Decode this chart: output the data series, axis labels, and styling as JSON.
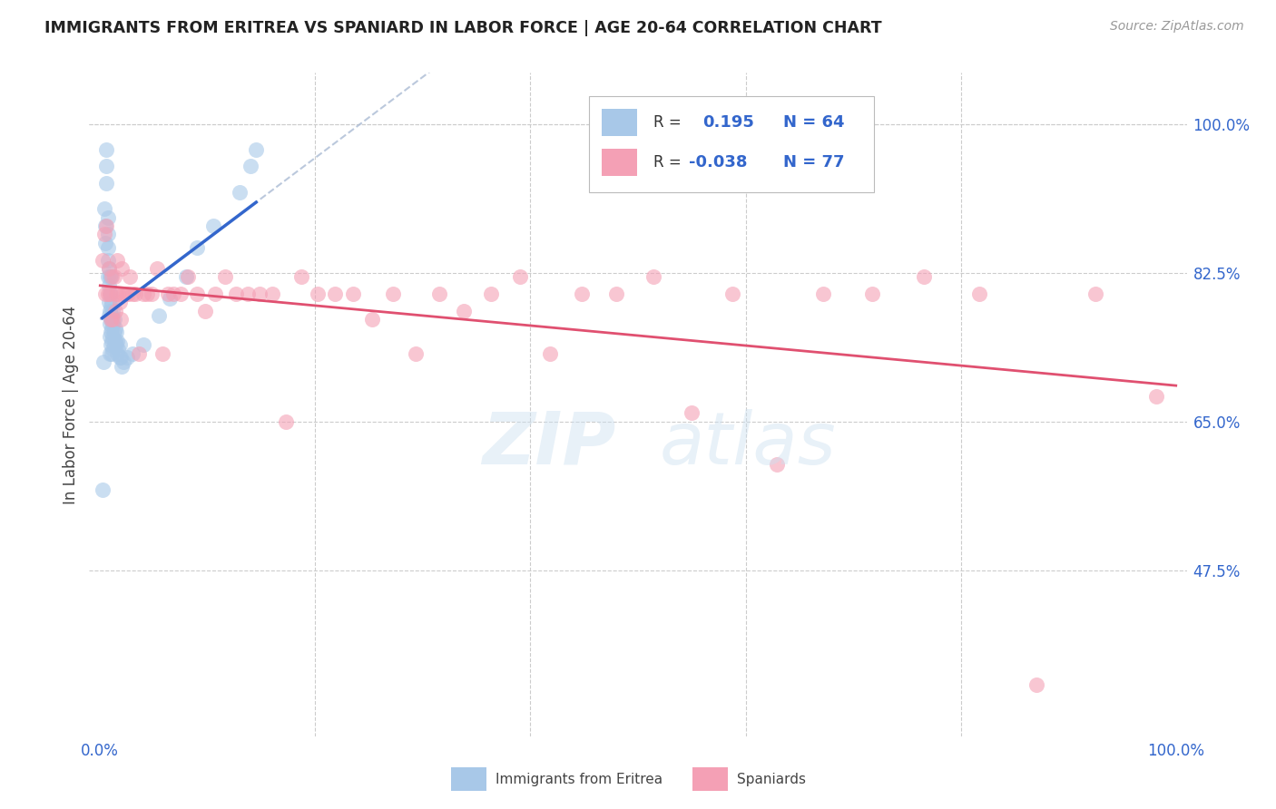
{
  "title": "IMMIGRANTS FROM ERITREA VS SPANIARD IN LABOR FORCE | AGE 20-64 CORRELATION CHART",
  "source": "Source: ZipAtlas.com",
  "ylabel": "In Labor Force | Age 20-64",
  "xlim": [
    -0.01,
    1.01
  ],
  "ylim": [
    0.28,
    1.06
  ],
  "y_tick_vals_right": [
    1.0,
    0.825,
    0.65,
    0.475
  ],
  "y_tick_labels_right": [
    "100.0%",
    "82.5%",
    "65.0%",
    "47.5%"
  ],
  "label1": "Immigrants from Eritrea",
  "label2": "Spaniards",
  "color_eritrea": "#a8c8e8",
  "color_spain": "#f4a0b5",
  "color_eritrea_line": "#3366cc",
  "color_spain_line": "#e05070",
  "color_eritrea_dashed": "#aabbd4",
  "watermark_zip": "ZIP",
  "watermark_atlas": "atlas",
  "eritrea_x": [
    0.002,
    0.003,
    0.004,
    0.005,
    0.005,
    0.006,
    0.006,
    0.006,
    0.007,
    0.007,
    0.007,
    0.007,
    0.007,
    0.008,
    0.008,
    0.008,
    0.008,
    0.009,
    0.009,
    0.009,
    0.009,
    0.009,
    0.009,
    0.01,
    0.01,
    0.01,
    0.01,
    0.01,
    0.01,
    0.011,
    0.011,
    0.011,
    0.011,
    0.011,
    0.012,
    0.012,
    0.012,
    0.012,
    0.013,
    0.013,
    0.013,
    0.014,
    0.014,
    0.015,
    0.015,
    0.016,
    0.016,
    0.017,
    0.018,
    0.018,
    0.019,
    0.02,
    0.022,
    0.025,
    0.03,
    0.04,
    0.055,
    0.065,
    0.08,
    0.09,
    0.105,
    0.13,
    0.14,
    0.145
  ],
  "eritrea_y": [
    0.57,
    0.72,
    0.9,
    0.88,
    0.86,
    0.97,
    0.95,
    0.93,
    0.89,
    0.87,
    0.855,
    0.84,
    0.82,
    0.83,
    0.81,
    0.79,
    0.775,
    0.82,
    0.8,
    0.78,
    0.765,
    0.75,
    0.73,
    0.82,
    0.8,
    0.785,
    0.77,
    0.755,
    0.74,
    0.79,
    0.775,
    0.76,
    0.745,
    0.73,
    0.78,
    0.765,
    0.75,
    0.735,
    0.77,
    0.755,
    0.74,
    0.76,
    0.745,
    0.755,
    0.74,
    0.745,
    0.73,
    0.735,
    0.74,
    0.725,
    0.725,
    0.715,
    0.72,
    0.725,
    0.73,
    0.74,
    0.775,
    0.795,
    0.82,
    0.855,
    0.88,
    0.92,
    0.95,
    0.97
  ],
  "spain_x": [
    0.002,
    0.004,
    0.005,
    0.006,
    0.007,
    0.008,
    0.009,
    0.01,
    0.011,
    0.012,
    0.013,
    0.014,
    0.015,
    0.016,
    0.017,
    0.018,
    0.019,
    0.02,
    0.022,
    0.024,
    0.026,
    0.028,
    0.03,
    0.033,
    0.036,
    0.04,
    0.044,
    0.048,
    0.053,
    0.058,
    0.063,
    0.068,
    0.075,
    0.082,
    0.09,
    0.098,
    0.107,
    0.116,
    0.126,
    0.137,
    0.148,
    0.16,
    0.173,
    0.187,
    0.202,
    0.218,
    0.235,
    0.253,
    0.272,
    0.293,
    0.315,
    0.338,
    0.363,
    0.39,
    0.418,
    0.448,
    0.48,
    0.514,
    0.55,
    0.588,
    0.629,
    0.672,
    0.718,
    0.766,
    0.817,
    0.87,
    0.925,
    0.982
  ],
  "spain_y": [
    0.84,
    0.87,
    0.8,
    0.88,
    0.8,
    0.83,
    0.8,
    0.77,
    0.82,
    0.77,
    0.82,
    0.78,
    0.8,
    0.84,
    0.8,
    0.79,
    0.77,
    0.83,
    0.8,
    0.8,
    0.8,
    0.82,
    0.8,
    0.8,
    0.73,
    0.8,
    0.8,
    0.8,
    0.83,
    0.73,
    0.8,
    0.8,
    0.8,
    0.82,
    0.8,
    0.78,
    0.8,
    0.82,
    0.8,
    0.8,
    0.8,
    0.8,
    0.65,
    0.82,
    0.8,
    0.8,
    0.8,
    0.77,
    0.8,
    0.73,
    0.8,
    0.78,
    0.8,
    0.82,
    0.73,
    0.8,
    0.8,
    0.82,
    0.66,
    0.8,
    0.6,
    0.8,
    0.8,
    0.82,
    0.8,
    0.34,
    0.8,
    0.68
  ]
}
